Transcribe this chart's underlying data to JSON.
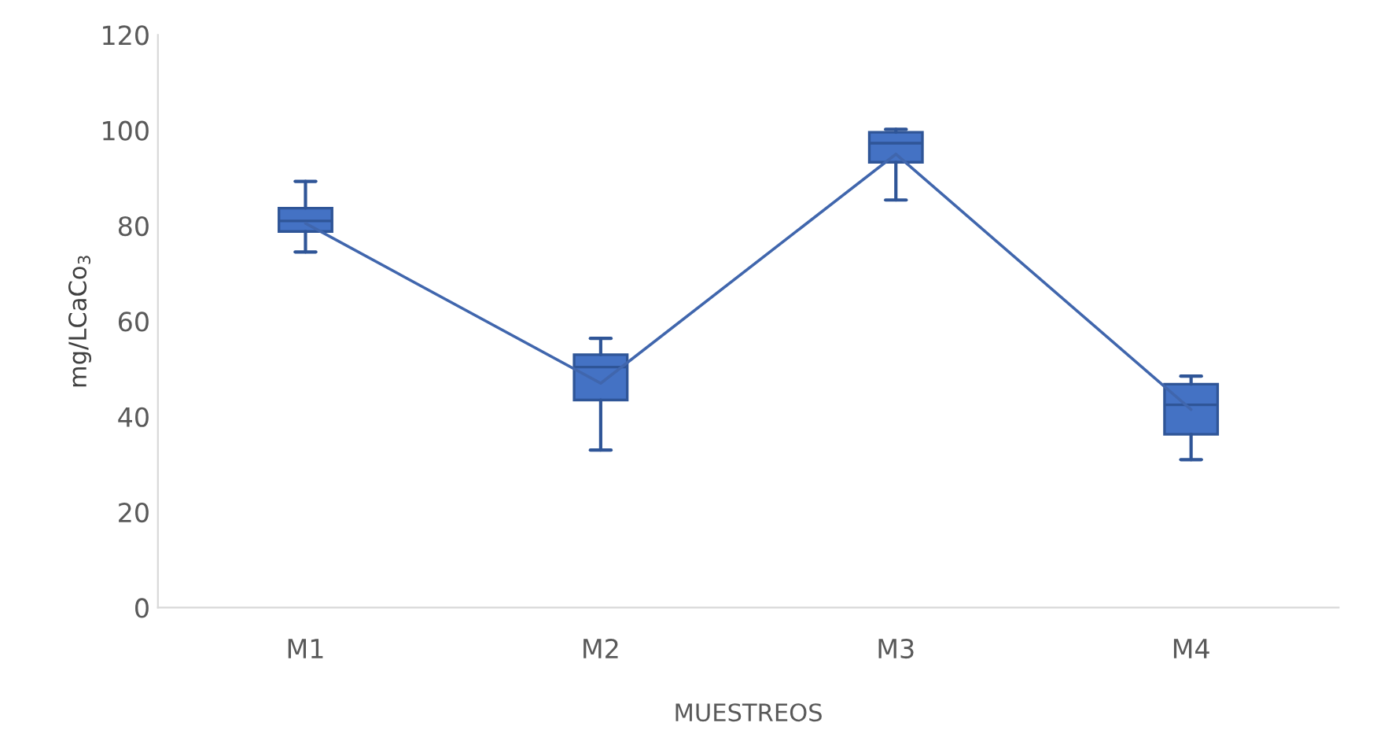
{
  "chart_data": {
    "type": "box",
    "xlabel": "MUESTREOS",
    "ylabel": "mg/LCaCo$_{3}$",
    "categories": [
      "M1",
      "M2",
      "M3",
      "M4"
    ],
    "boxes": [
      {
        "low": 74.5,
        "q1": 78.8,
        "median": 81,
        "q3": 83.7,
        "high": 89.3
      },
      {
        "low": 33,
        "q1": 43.5,
        "median": 50.4,
        "q3": 53,
        "high": 56.4
      },
      {
        "low": 85.4,
        "q1": 93.3,
        "median": 97.3,
        "q3": 99.6,
        "high": 100.2
      },
      {
        "low": 31,
        "q1": 36.3,
        "median": 42.5,
        "q3": 46.8,
        "high": 48.5
      }
    ],
    "color": "#4472c4",
    "series": [
      {
        "type": "line",
        "color": "#4066ad",
        "values": [
          80.5,
          47,
          95,
          41.5
        ]
      }
    ],
    "ylim": [
      0,
      120
    ],
    "yticks": [
      0,
      20,
      40,
      60,
      80,
      100,
      120
    ],
    "grid": false
  }
}
